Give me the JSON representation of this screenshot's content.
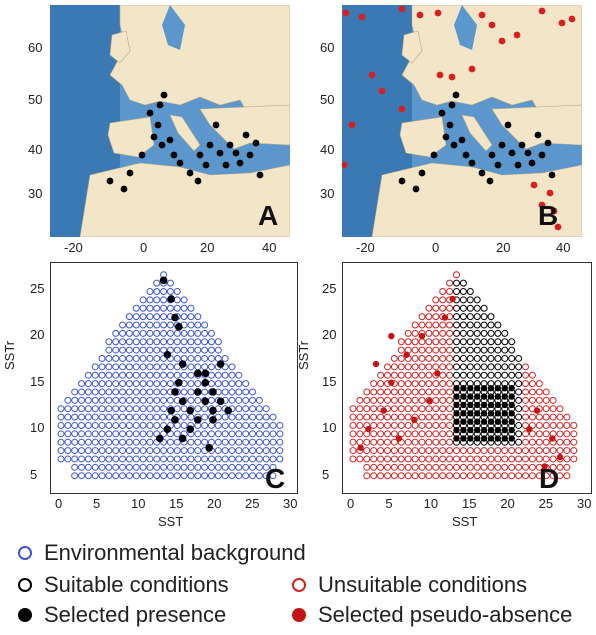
{
  "panels": {
    "A": {
      "letter": "A"
    },
    "B": {
      "letter": "B"
    },
    "C": {
      "letter": "C"
    },
    "D": {
      "letter": "D"
    }
  },
  "map_axes": {
    "lon_ticks": [
      "-20",
      "0",
      "20",
      "40"
    ],
    "lat_ticks": [
      "60",
      "50",
      "40",
      "30"
    ]
  },
  "plot_axes": {
    "xlabel": "SST",
    "ylabel": "SSTr",
    "x_ticks": [
      "0",
      "5",
      "10",
      "15",
      "20",
      "25",
      "30"
    ],
    "y_ticks": [
      "25",
      "20",
      "15",
      "10",
      "5"
    ]
  },
  "legend": {
    "environmental_background": "Environmental background",
    "suitable_conditions": "Suitable conditions",
    "selected_presence": "Selected presence",
    "unsuitable_conditions": "Unsuitable conditions",
    "selected_pseudo_absence": "Selected pseudo-absence"
  },
  "colors": {
    "background_blue": "#3d55d6",
    "presence_black": "#000000",
    "unsuitable_red": "#d42020",
    "sea": "#4a89c0",
    "land": "#f2e5c8"
  }
}
